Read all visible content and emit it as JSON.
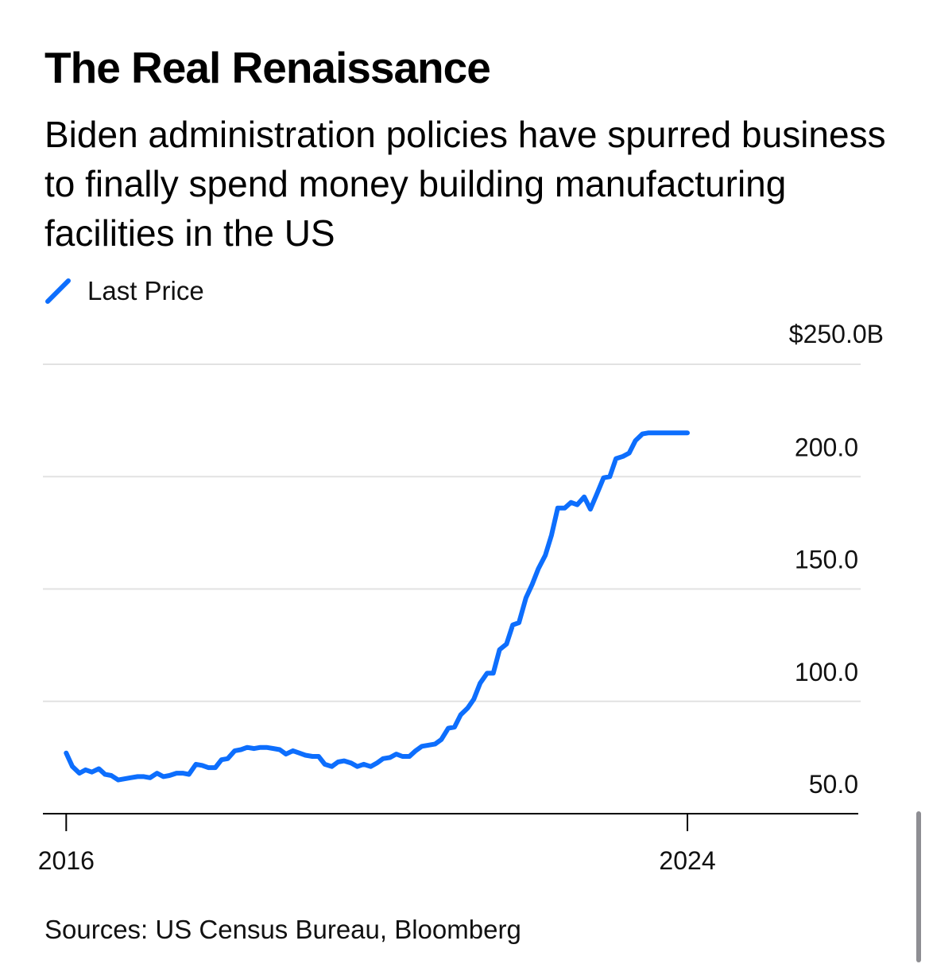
{
  "header": {
    "title": "The Real Renaissance",
    "subtitle": "Biden administration policies have spurred business to finally spend money building manufacturing facilities in the US"
  },
  "legend": {
    "label": "Last Price",
    "color": "#0d6efd"
  },
  "chart_data": {
    "type": "line",
    "title": "The Real Renaissance",
    "subtitle": "Biden administration policies have spurred business to finally spend money building manufacturing facilities in the US",
    "xlabel": "",
    "ylabel": "",
    "unit_label": "$250.0B",
    "ylim": [
      50,
      250
    ],
    "yticks": [
      50,
      100,
      150,
      200
    ],
    "ytick_labels": [
      "50.0",
      "100.0",
      "150.0",
      "200.0"
    ],
    "xlim": [
      2015.7,
      2026.2
    ],
    "xticks": [
      2016,
      2024
    ],
    "xtick_labels": [
      "2016",
      "2024"
    ],
    "grid": true,
    "legend_position": "top-left",
    "series": [
      {
        "name": "Last Price",
        "color": "#0d6efd",
        "x": [
          2016.0,
          2016.08,
          2016.17,
          2016.25,
          2016.33,
          2016.42,
          2016.5,
          2016.58,
          2016.67,
          2016.75,
          2016.83,
          2016.92,
          2017.0,
          2017.08,
          2017.17,
          2017.25,
          2017.33,
          2017.42,
          2017.5,
          2017.58,
          2017.67,
          2017.75,
          2017.83,
          2017.92,
          2018.0,
          2018.08,
          2018.17,
          2018.25,
          2018.33,
          2018.42,
          2018.5,
          2018.58,
          2018.67,
          2018.75,
          2018.83,
          2018.92,
          2019.0,
          2019.08,
          2019.17,
          2019.25,
          2019.33,
          2019.42,
          2019.5,
          2019.58,
          2019.67,
          2019.75,
          2019.83,
          2019.92,
          2020.0,
          2020.08,
          2020.17,
          2020.25,
          2020.33,
          2020.42,
          2020.5,
          2020.58,
          2020.67,
          2020.75,
          2020.83,
          2020.92,
          2021.0,
          2021.08,
          2021.17,
          2021.25,
          2021.33,
          2021.42,
          2021.5,
          2021.58,
          2021.67,
          2021.75,
          2021.83,
          2021.92,
          2022.0,
          2022.08,
          2022.17,
          2022.25,
          2022.33,
          2022.42,
          2022.5,
          2022.58,
          2022.67,
          2022.75,
          2022.83,
          2022.92,
          2023.0,
          2023.08,
          2023.17,
          2023.25,
          2023.33,
          2023.42,
          2023.5,
          2023.58,
          2023.67,
          2023.75,
          2023.83,
          2023.92,
          2024.0
        ],
        "values": [
          77,
          71,
          68,
          69.5,
          68.5,
          70,
          67.5,
          67,
          65,
          65.5,
          66,
          66.5,
          66.5,
          66,
          68,
          66.5,
          67,
          68,
          68,
          67.5,
          72,
          71.5,
          70.5,
          70.5,
          74,
          74.5,
          78,
          78.5,
          79.5,
          79,
          79.5,
          79.5,
          79,
          78.5,
          76.5,
          78,
          77,
          76,
          75.5,
          75.5,
          72,
          71,
          73,
          73.5,
          72.5,
          71,
          72,
          71,
          72.5,
          74.5,
          75,
          76.5,
          75.5,
          75.5,
          78,
          80,
          80.5,
          81,
          83,
          88,
          88.5,
          94,
          97,
          101,
          108,
          112.5,
          112.5,
          123,
          125.5,
          134,
          135,
          146,
          152,
          159,
          165,
          174,
          186,
          186,
          188.5,
          187.5,
          191,
          185.5,
          192,
          199.5,
          200,
          208,
          209,
          210.5,
          216,
          219,
          219.5,
          219.5,
          219.5,
          219.5,
          219.5,
          219.5,
          219.5
        ]
      }
    ]
  },
  "source": {
    "text": "Sources: US Census Bureau, Bloomberg"
  }
}
